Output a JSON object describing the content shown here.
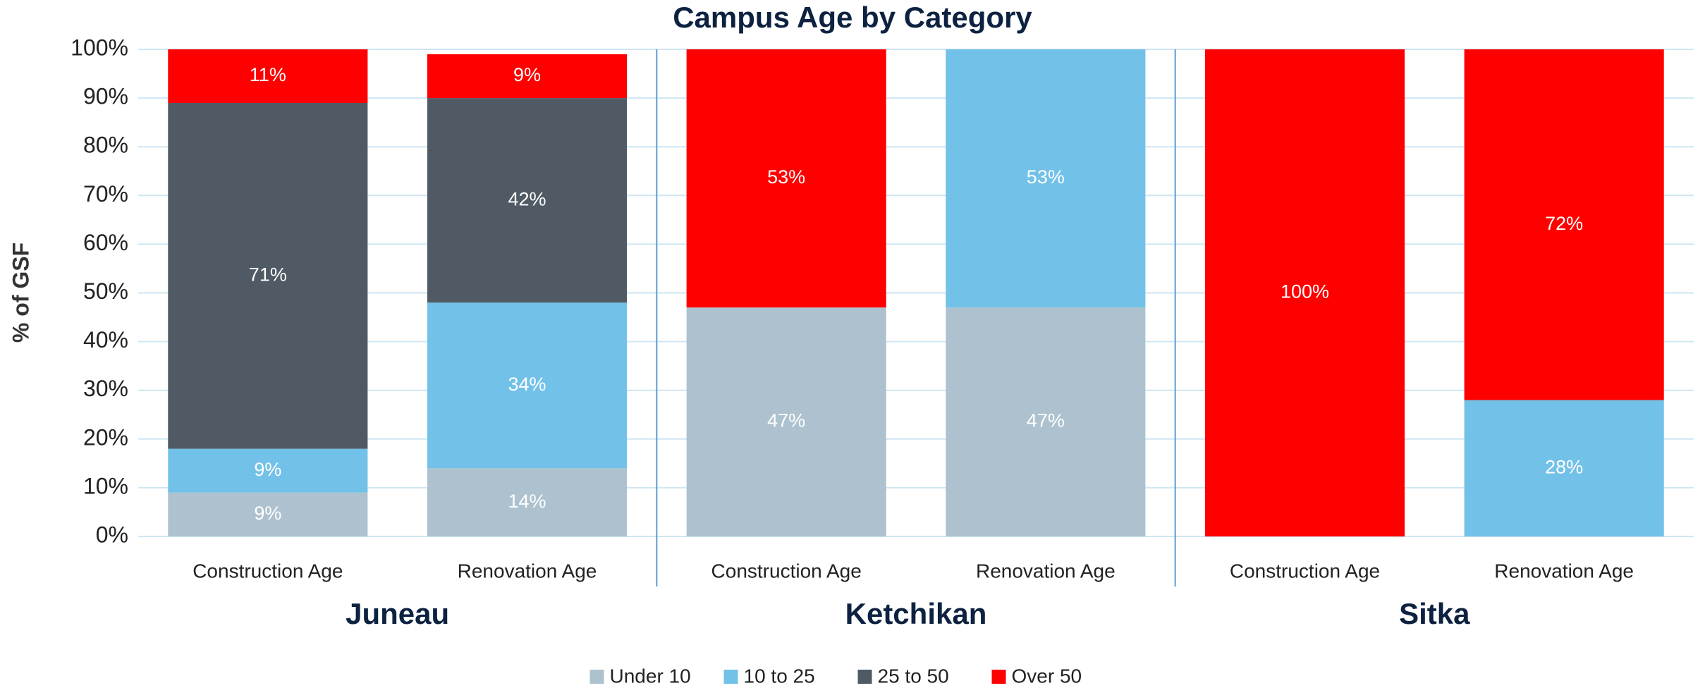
{
  "chart_data": {
    "type": "stacked_bar",
    "title": "Campus Age by Category",
    "y_label": "% of GSF",
    "groups": [
      "Juneau",
      "Ketchikan",
      "Sitka"
    ],
    "categories": [
      "Construction Age",
      "Renovation Age",
      "Construction Age",
      "Renovation Age",
      "Construction Age",
      "Renovation Age"
    ],
    "series": [
      {
        "name": "Under 10",
        "color": "#adc2ce",
        "values": [
          9,
          14,
          47,
          47,
          0,
          0
        ],
        "value_labels": [
          "9%",
          "14%",
          "47%",
          "47%",
          null,
          null
        ]
      },
      {
        "name": "10 to 25",
        "color": "#72c1e8",
        "values": [
          9,
          34,
          0,
          53,
          0,
          28
        ],
        "value_labels": [
          "9%",
          "34%",
          null,
          "53%",
          null,
          "28%"
        ]
      },
      {
        "name": "25 to 50",
        "color": "#505a64",
        "values": [
          71,
          42,
          0,
          0,
          0,
          0
        ],
        "value_labels": [
          "71%",
          "42%",
          null,
          null,
          null,
          null
        ]
      },
      {
        "name": "Over 50",
        "color": "#ff0000",
        "values": [
          11,
          9,
          53,
          0,
          100,
          72
        ],
        "value_labels": [
          "11%",
          "9%",
          "53%",
          null,
          "100%",
          "72%"
        ]
      }
    ],
    "ylim": [
      0,
      100
    ],
    "yticks": [
      {
        "value": 0,
        "label": "0%"
      },
      {
        "value": 10,
        "label": "10%"
      },
      {
        "value": 20,
        "label": "20%"
      },
      {
        "value": 30,
        "label": "30%"
      },
      {
        "value": 40,
        "label": "40%"
      },
      {
        "value": 50,
        "label": "50%"
      },
      {
        "value": 60,
        "label": "60%"
      },
      {
        "value": 70,
        "label": "70%"
      },
      {
        "value": 80,
        "label": "80%"
      },
      {
        "value": 90,
        "label": "90%"
      },
      {
        "value": 100,
        "label": "100%"
      }
    ],
    "grid": true,
    "legend": "bottom"
  }
}
